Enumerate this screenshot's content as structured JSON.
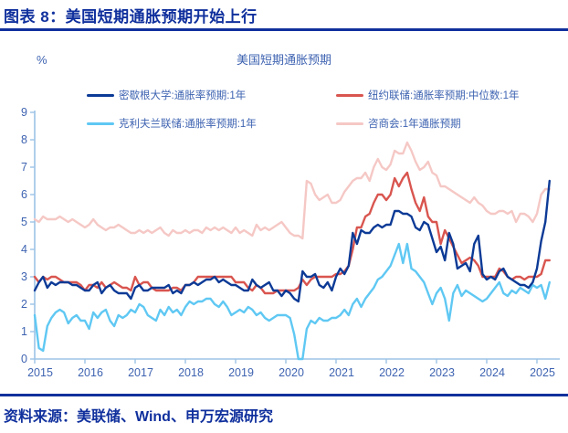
{
  "header": {
    "title": "图表 8：美国短期通胀预期开始上行"
  },
  "footer": {
    "source": "资料来源：美联储、Wind、申万宏源研究"
  },
  "colors": {
    "accent_navy": "#10309d",
    "axis_line": "#9dc3e6",
    "axis_label": "#3e63b1",
    "legend_text": "#3e63b1",
    "series_michigan": "#0c3a96",
    "series_nyfed": "#d9554f",
    "series_cleveland": "#5fc8f3",
    "series_confboard": "#f5c8c5"
  },
  "chart_data": {
    "type": "line",
    "title": "美国短期通胀预期",
    "ylabel": "%",
    "xlabel": "",
    "ylim": [
      0,
      9
    ],
    "yticks": [
      0,
      1,
      2,
      3,
      4,
      5,
      6,
      7,
      8,
      9
    ],
    "xticks": [
      2015,
      2016,
      2017,
      2018,
      2019,
      2020,
      2021,
      2022,
      2023,
      2024,
      2025
    ],
    "x_start_year": 2015,
    "x_frequency": "monthly",
    "x_range": "2015-01 to 2025-04",
    "grid": false,
    "legend_position": "top",
    "series": [
      {
        "name": "密歇根大学:通胀率预期:1年",
        "color": "#0c3a96",
        "values": [
          2.5,
          2.8,
          3.0,
          2.6,
          2.8,
          2.7,
          2.8,
          2.8,
          2.8,
          2.7,
          2.7,
          2.6,
          2.5,
          2.5,
          2.7,
          2.8,
          2.4,
          2.6,
          2.7,
          2.5,
          2.4,
          2.4,
          2.4,
          2.2,
          2.6,
          2.7,
          2.5,
          2.5,
          2.6,
          2.6,
          2.6,
          2.6,
          2.7,
          2.4,
          2.5,
          2.4,
          2.7,
          2.7,
          2.8,
          2.7,
          2.8,
          2.9,
          2.9,
          3.0,
          2.8,
          2.9,
          2.8,
          2.7,
          2.7,
          2.6,
          2.5,
          2.5,
          2.9,
          2.7,
          2.6,
          2.7,
          2.8,
          2.5,
          2.5,
          2.3,
          2.5,
          2.4,
          2.2,
          2.1,
          3.2,
          3.0,
          3.0,
          3.1,
          2.7,
          2.6,
          2.8,
          2.5,
          3.0,
          3.3,
          3.1,
          3.4,
          4.6,
          4.2,
          4.7,
          4.6,
          4.6,
          4.8,
          4.9,
          4.8,
          4.9,
          4.9,
          5.4,
          5.4,
          5.3,
          5.3,
          5.2,
          4.8,
          4.7,
          5.0,
          4.9,
          4.4,
          3.9,
          4.1,
          3.6,
          4.6,
          4.2,
          3.3,
          3.4,
          3.5,
          3.2,
          4.2,
          4.5,
          3.1,
          2.9,
          3.0,
          2.9,
          3.2,
          3.3,
          3.0,
          2.9,
          2.8,
          2.7,
          2.7,
          2.6,
          2.8,
          3.3,
          4.3,
          5.0,
          6.5
        ]
      },
      {
        "name": "纽约联储:通胀率预期:中位数:1年",
        "color": "#d9554f",
        "values": [
          3.0,
          2.8,
          3.0,
          2.9,
          3.0,
          3.0,
          2.9,
          2.8,
          2.8,
          2.8,
          2.8,
          2.7,
          2.5,
          2.7,
          2.7,
          2.6,
          2.8,
          2.6,
          2.7,
          2.8,
          2.7,
          2.6,
          2.6,
          2.5,
          3.0,
          2.7,
          2.8,
          2.8,
          2.6,
          2.5,
          2.5,
          2.5,
          2.5,
          2.6,
          2.6,
          2.5,
          2.7,
          2.7,
          2.8,
          3.0,
          3.0,
          3.0,
          3.0,
          3.0,
          3.0,
          3.0,
          3.0,
          3.0,
          2.8,
          2.8,
          2.8,
          2.6,
          2.5,
          2.7,
          2.6,
          2.4,
          2.4,
          2.4,
          2.5,
          2.5,
          2.5,
          2.5,
          2.5,
          2.6,
          2.9,
          2.7,
          2.9,
          3.0,
          3.0,
          3.0,
          3.0,
          3.0,
          3.1,
          3.1,
          3.2,
          3.4,
          4.0,
          4.8,
          4.8,
          5.2,
          5.3,
          5.7,
          6.0,
          6.0,
          5.8,
          6.0,
          6.6,
          6.3,
          6.6,
          6.8,
          6.2,
          5.7,
          5.4,
          5.9,
          5.2,
          5.0,
          5.0,
          4.2,
          4.7,
          4.4,
          4.1,
          3.8,
          3.5,
          3.6,
          3.7,
          3.6,
          3.4,
          3.0,
          3.0,
          3.0,
          3.0,
          3.3,
          3.2,
          3.0,
          2.9,
          3.0,
          3.0,
          2.9,
          3.0,
          3.0,
          3.0,
          3.1,
          3.6,
          3.6
        ]
      },
      {
        "name": "克利夫兰联储:通胀率预期:1年",
        "color": "#5fc8f3",
        "values": [
          1.6,
          0.4,
          0.3,
          1.2,
          1.5,
          1.7,
          1.8,
          1.7,
          1.3,
          1.5,
          1.6,
          1.4,
          1.4,
          1.1,
          1.7,
          1.5,
          1.7,
          1.8,
          1.4,
          1.2,
          1.6,
          1.5,
          1.6,
          1.8,
          1.7,
          2.0,
          1.9,
          1.6,
          1.5,
          1.4,
          1.8,
          1.6,
          1.9,
          1.7,
          1.8,
          1.6,
          1.9,
          2.1,
          2.0,
          2.1,
          2.1,
          2.2,
          2.2,
          2.0,
          1.9,
          2.1,
          1.9,
          1.6,
          1.7,
          1.8,
          1.7,
          1.9,
          1.8,
          1.6,
          1.7,
          1.5,
          1.4,
          1.5,
          1.6,
          1.6,
          1.6,
          1.5,
          0.9,
          0.0,
          0.0,
          1.1,
          1.4,
          1.3,
          1.5,
          1.4,
          1.4,
          1.5,
          1.5,
          1.6,
          1.8,
          1.6,
          2.0,
          2.2,
          1.9,
          2.2,
          2.4,
          2.6,
          2.9,
          3.0,
          3.2,
          3.4,
          3.8,
          4.2,
          3.5,
          4.2,
          3.3,
          3.2,
          3.0,
          2.8,
          2.4,
          2.0,
          2.4,
          2.6,
          2.2,
          1.4,
          2.4,
          2.7,
          2.3,
          2.5,
          2.4,
          2.3,
          2.2,
          2.1,
          2.2,
          2.4,
          2.6,
          2.8,
          2.4,
          2.3,
          2.5,
          2.4,
          2.6,
          2.5,
          2.4,
          2.7,
          2.6,
          2.7,
          2.2,
          2.8
        ]
      },
      {
        "name": "咨商会:1年通胀预期",
        "color": "#f5c8c5",
        "values": [
          5.1,
          5.0,
          5.2,
          5.1,
          5.1,
          5.1,
          5.2,
          5.1,
          5.0,
          5.1,
          5.0,
          4.9,
          4.8,
          4.9,
          5.1,
          4.9,
          4.8,
          4.7,
          4.8,
          4.8,
          4.9,
          4.8,
          4.7,
          4.6,
          4.6,
          4.7,
          4.6,
          4.7,
          4.6,
          4.7,
          4.8,
          4.6,
          4.5,
          4.7,
          4.6,
          4.6,
          4.7,
          4.6,
          4.7,
          4.7,
          4.6,
          4.8,
          4.7,
          4.8,
          4.7,
          4.8,
          4.7,
          4.6,
          4.8,
          4.6,
          4.7,
          4.6,
          4.5,
          4.9,
          4.7,
          4.8,
          4.7,
          4.8,
          4.9,
          5.0,
          4.8,
          4.6,
          4.5,
          4.5,
          4.4,
          6.5,
          6.4,
          6.0,
          5.8,
          5.9,
          6.0,
          5.7,
          5.7,
          5.8,
          6.1,
          6.3,
          6.5,
          6.6,
          6.6,
          6.8,
          6.5,
          7.0,
          7.3,
          7.0,
          6.9,
          7.1,
          7.6,
          7.5,
          7.5,
          7.9,
          7.6,
          7.2,
          6.9,
          7.0,
          7.2,
          6.8,
          6.7,
          6.3,
          6.3,
          6.2,
          6.1,
          6.0,
          5.9,
          5.8,
          5.7,
          5.9,
          5.7,
          5.6,
          5.4,
          5.3,
          5.3,
          5.4,
          5.4,
          5.3,
          5.4,
          5.0,
          5.3,
          5.3,
          5.2,
          5.0,
          5.3,
          6.0,
          6.2,
          6.2
        ]
      }
    ]
  }
}
